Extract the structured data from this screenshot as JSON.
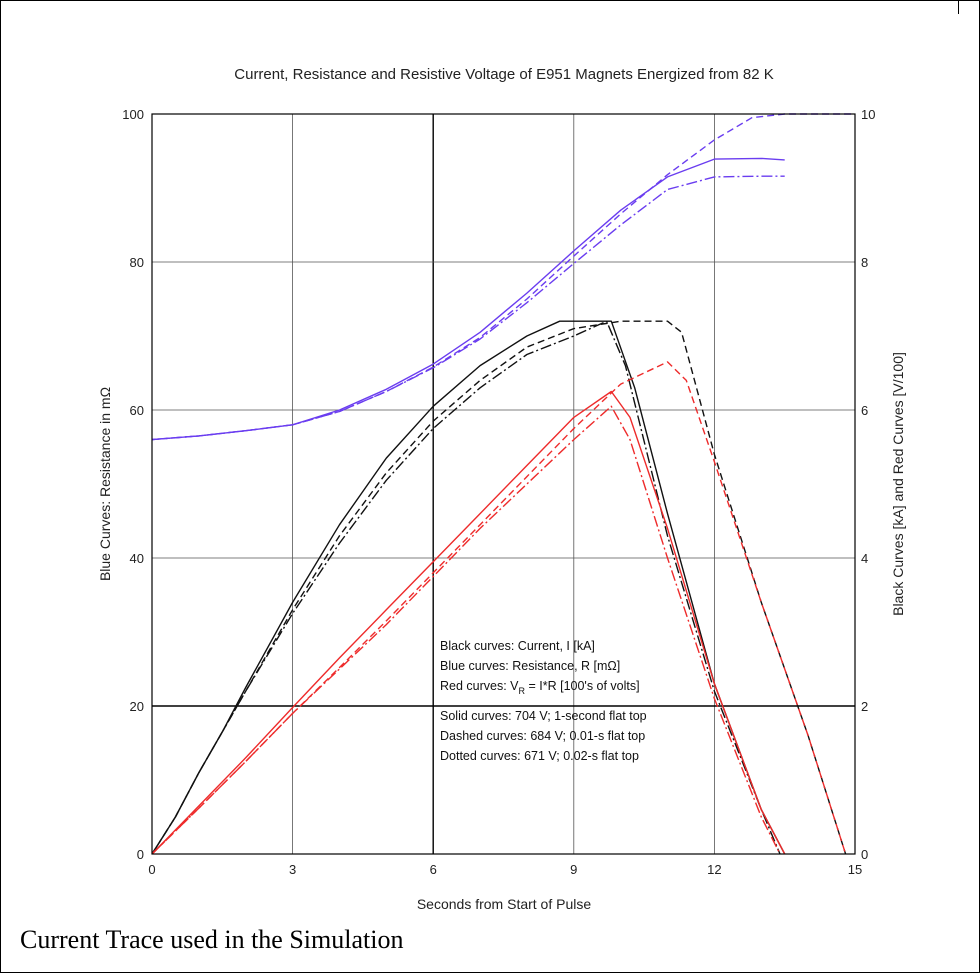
{
  "caption": "Current Trace used in the Simulation",
  "colors": {
    "blue": "#6a3df0",
    "black": "#111111",
    "red": "#ee2b2b"
  },
  "chart_data": {
    "type": "line",
    "title": "Current, Resistance and Resistive Voltage of E951 Magnets Energized from 82 K",
    "xlabel": "Seconds from Start of Pulse",
    "ylabel_left": "Blue Curves: Resistance in mΩ",
    "ylabel_right": "Black Curves [kA] and Red Curves [V/100]",
    "xlim": [
      0,
      15
    ],
    "ylim_left": [
      0,
      100
    ],
    "ylim_right": [
      0,
      10
    ],
    "x_ticks": [
      "0",
      "3",
      "6",
      "9",
      "12",
      "15"
    ],
    "y_ticks_left": [
      "0",
      "20",
      "40",
      "60",
      "80",
      "100"
    ],
    "y_ticks_right": [
      "0",
      "2",
      "4",
      "6",
      "8",
      "10"
    ],
    "grid": true,
    "legend": {
      "placement": "center-right",
      "lines": [
        "Black curves:  Current, I  [kA]",
        "Blue curves:  Resistance, R  [mΩ]",
        "Red curves:  V",
        "R",
        " = I*R   [100's of volts]",
        "Solid curves:  704 V; 1-second flat top",
        "Dashed curves:  684 V; 0.01-s flat top",
        "Dotted curves:  671 V; 0.02-s flat top"
      ]
    },
    "series": [
      {
        "group": "blue",
        "style": "solid",
        "points": [
          [
            0,
            56
          ],
          [
            1,
            56.5
          ],
          [
            2,
            57.2
          ],
          [
            3,
            58
          ],
          [
            4,
            60
          ],
          [
            5,
            62.8
          ],
          [
            6,
            66.2
          ],
          [
            7,
            70.5
          ],
          [
            8,
            75.8
          ],
          [
            9,
            81.5
          ],
          [
            10,
            87
          ],
          [
            11,
            91.5
          ],
          [
            12,
            93.9
          ],
          [
            13,
            94
          ],
          [
            13.5,
            93.8
          ]
        ]
      },
      {
        "group": "blue",
        "style": "dashed",
        "points": [
          [
            0,
            56
          ],
          [
            1,
            56.5
          ],
          [
            2,
            57.2
          ],
          [
            3,
            58
          ],
          [
            4,
            59.8
          ],
          [
            5,
            62.5
          ],
          [
            6,
            65.8
          ],
          [
            7,
            69.8
          ],
          [
            8,
            75
          ],
          [
            9,
            80.8
          ],
          [
            10,
            86.5
          ],
          [
            11,
            91.8
          ],
          [
            12,
            96.5
          ],
          [
            12.8,
            99.5
          ],
          [
            13.5,
            100
          ],
          [
            15,
            100
          ]
        ]
      },
      {
        "group": "blue",
        "style": "dotted",
        "points": [
          [
            0,
            56
          ],
          [
            1,
            56.5
          ],
          [
            2,
            57.2
          ],
          [
            3,
            58
          ],
          [
            4,
            59.8
          ],
          [
            5,
            62.5
          ],
          [
            6,
            65.7
          ],
          [
            7,
            69.6
          ],
          [
            8,
            74.5
          ],
          [
            9,
            79.8
          ],
          [
            10,
            85
          ],
          [
            11,
            89.8
          ],
          [
            12,
            91.5
          ],
          [
            13,
            91.6
          ],
          [
            13.5,
            91.6
          ]
        ]
      },
      {
        "group": "black",
        "style": "solid",
        "points": [
          [
            0,
            0
          ],
          [
            0.5,
            0.5
          ],
          [
            1,
            1.1
          ],
          [
            1.5,
            1.65
          ],
          [
            2,
            2.25
          ],
          [
            3,
            3.4
          ],
          [
            4,
            4.45
          ],
          [
            5,
            5.35
          ],
          [
            6,
            6.05
          ],
          [
            7,
            6.6
          ],
          [
            8,
            7.0
          ],
          [
            8.7,
            7.2
          ],
          [
            9.8,
            7.2
          ],
          [
            10.3,
            6.3
          ],
          [
            11,
            4.6
          ],
          [
            12,
            2.3
          ],
          [
            13,
            0.6
          ],
          [
            13.5,
            0
          ]
        ]
      },
      {
        "group": "black",
        "style": "dashed",
        "points": [
          [
            0,
            0
          ],
          [
            0.5,
            0.5
          ],
          [
            1,
            1.1
          ],
          [
            2,
            2.2
          ],
          [
            3,
            3.3
          ],
          [
            4,
            4.3
          ],
          [
            5,
            5.15
          ],
          [
            6,
            5.85
          ],
          [
            7,
            6.4
          ],
          [
            8,
            6.85
          ],
          [
            9,
            7.1
          ],
          [
            10,
            7.2
          ],
          [
            11,
            7.2
          ],
          [
            11.3,
            7.05
          ],
          [
            12,
            5.4
          ],
          [
            13,
            3.4
          ],
          [
            14,
            1.6
          ],
          [
            14.8,
            0
          ]
        ]
      },
      {
        "group": "black",
        "style": "dotted",
        "points": [
          [
            0,
            0
          ],
          [
            0.5,
            0.5
          ],
          [
            1,
            1.1
          ],
          [
            2,
            2.2
          ],
          [
            3,
            3.25
          ],
          [
            4,
            4.2
          ],
          [
            5,
            5.05
          ],
          [
            6,
            5.75
          ],
          [
            7,
            6.3
          ],
          [
            8,
            6.75
          ],
          [
            9,
            7.0
          ],
          [
            9.7,
            7.2
          ],
          [
            10.1,
            6.6
          ],
          [
            11,
            4.3
          ],
          [
            12,
            2.2
          ],
          [
            13,
            0.6
          ],
          [
            13.4,
            0
          ]
        ]
      },
      {
        "group": "red",
        "style": "solid",
        "points": [
          [
            0,
            0
          ],
          [
            1,
            0.65
          ],
          [
            2,
            1.3
          ],
          [
            3,
            1.98
          ],
          [
            4,
            2.65
          ],
          [
            5,
            3.3
          ],
          [
            6,
            3.95
          ],
          [
            7,
            4.6
          ],
          [
            8,
            5.25
          ],
          [
            9,
            5.9
          ],
          [
            9.8,
            6.25
          ],
          [
            10.2,
            5.9
          ],
          [
            11,
            4.4
          ],
          [
            12,
            2.3
          ],
          [
            13,
            0.6
          ],
          [
            13.5,
            0
          ]
        ]
      },
      {
        "group": "red",
        "style": "dashed",
        "points": [
          [
            0,
            0
          ],
          [
            1,
            0.62
          ],
          [
            2,
            1.25
          ],
          [
            3,
            1.9
          ],
          [
            4,
            2.52
          ],
          [
            5,
            3.15
          ],
          [
            6,
            3.8
          ],
          [
            7,
            4.45
          ],
          [
            8,
            5.1
          ],
          [
            9,
            5.75
          ],
          [
            10,
            6.35
          ],
          [
            11,
            6.65
          ],
          [
            11.4,
            6.4
          ],
          [
            12,
            5.3
          ],
          [
            13,
            3.4
          ],
          [
            14,
            1.6
          ],
          [
            14.8,
            0
          ]
        ]
      },
      {
        "group": "red",
        "style": "dotted",
        "points": [
          [
            0,
            0
          ],
          [
            1,
            0.62
          ],
          [
            2,
            1.25
          ],
          [
            3,
            1.9
          ],
          [
            4,
            2.5
          ],
          [
            5,
            3.1
          ],
          [
            6,
            3.75
          ],
          [
            7,
            4.4
          ],
          [
            8,
            5.0
          ],
          [
            9,
            5.6
          ],
          [
            9.8,
            6.05
          ],
          [
            10.2,
            5.6
          ],
          [
            11,
            4.0
          ],
          [
            12,
            2.1
          ],
          [
            13,
            0.5
          ],
          [
            13.4,
            0
          ]
        ]
      }
    ]
  }
}
